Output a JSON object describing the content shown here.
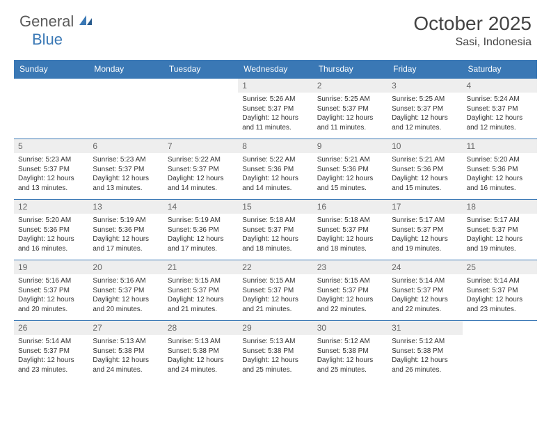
{
  "logo": {
    "text1": "General",
    "text2": "Blue"
  },
  "title": "October 2025",
  "location": "Sasi, Indonesia",
  "colors": {
    "header_bg": "#3a78b5",
    "header_text": "#ffffff",
    "daynum_bg": "#eeeeee",
    "daynum_text": "#666666",
    "border": "#3a78b5",
    "body_text": "#333333"
  },
  "dayHeaders": [
    "Sunday",
    "Monday",
    "Tuesday",
    "Wednesday",
    "Thursday",
    "Friday",
    "Saturday"
  ],
  "weeks": [
    [
      null,
      null,
      null,
      {
        "n": "1",
        "sr": "5:26 AM",
        "ss": "5:37 PM",
        "dl": "12 hours and 11 minutes."
      },
      {
        "n": "2",
        "sr": "5:25 AM",
        "ss": "5:37 PM",
        "dl": "12 hours and 11 minutes."
      },
      {
        "n": "3",
        "sr": "5:25 AM",
        "ss": "5:37 PM",
        "dl": "12 hours and 12 minutes."
      },
      {
        "n": "4",
        "sr": "5:24 AM",
        "ss": "5:37 PM",
        "dl": "12 hours and 12 minutes."
      }
    ],
    [
      {
        "n": "5",
        "sr": "5:23 AM",
        "ss": "5:37 PM",
        "dl": "12 hours and 13 minutes."
      },
      {
        "n": "6",
        "sr": "5:23 AM",
        "ss": "5:37 PM",
        "dl": "12 hours and 13 minutes."
      },
      {
        "n": "7",
        "sr": "5:22 AM",
        "ss": "5:37 PM",
        "dl": "12 hours and 14 minutes."
      },
      {
        "n": "8",
        "sr": "5:22 AM",
        "ss": "5:36 PM",
        "dl": "12 hours and 14 minutes."
      },
      {
        "n": "9",
        "sr": "5:21 AM",
        "ss": "5:36 PM",
        "dl": "12 hours and 15 minutes."
      },
      {
        "n": "10",
        "sr": "5:21 AM",
        "ss": "5:36 PM",
        "dl": "12 hours and 15 minutes."
      },
      {
        "n": "11",
        "sr": "5:20 AM",
        "ss": "5:36 PM",
        "dl": "12 hours and 16 minutes."
      }
    ],
    [
      {
        "n": "12",
        "sr": "5:20 AM",
        "ss": "5:36 PM",
        "dl": "12 hours and 16 minutes."
      },
      {
        "n": "13",
        "sr": "5:19 AM",
        "ss": "5:36 PM",
        "dl": "12 hours and 17 minutes."
      },
      {
        "n": "14",
        "sr": "5:19 AM",
        "ss": "5:36 PM",
        "dl": "12 hours and 17 minutes."
      },
      {
        "n": "15",
        "sr": "5:18 AM",
        "ss": "5:37 PM",
        "dl": "12 hours and 18 minutes."
      },
      {
        "n": "16",
        "sr": "5:18 AM",
        "ss": "5:37 PM",
        "dl": "12 hours and 18 minutes."
      },
      {
        "n": "17",
        "sr": "5:17 AM",
        "ss": "5:37 PM",
        "dl": "12 hours and 19 minutes."
      },
      {
        "n": "18",
        "sr": "5:17 AM",
        "ss": "5:37 PM",
        "dl": "12 hours and 19 minutes."
      }
    ],
    [
      {
        "n": "19",
        "sr": "5:16 AM",
        "ss": "5:37 PM",
        "dl": "12 hours and 20 minutes."
      },
      {
        "n": "20",
        "sr": "5:16 AM",
        "ss": "5:37 PM",
        "dl": "12 hours and 20 minutes."
      },
      {
        "n": "21",
        "sr": "5:15 AM",
        "ss": "5:37 PM",
        "dl": "12 hours and 21 minutes."
      },
      {
        "n": "22",
        "sr": "5:15 AM",
        "ss": "5:37 PM",
        "dl": "12 hours and 21 minutes."
      },
      {
        "n": "23",
        "sr": "5:15 AM",
        "ss": "5:37 PM",
        "dl": "12 hours and 22 minutes."
      },
      {
        "n": "24",
        "sr": "5:14 AM",
        "ss": "5:37 PM",
        "dl": "12 hours and 22 minutes."
      },
      {
        "n": "25",
        "sr": "5:14 AM",
        "ss": "5:37 PM",
        "dl": "12 hours and 23 minutes."
      }
    ],
    [
      {
        "n": "26",
        "sr": "5:14 AM",
        "ss": "5:37 PM",
        "dl": "12 hours and 23 minutes."
      },
      {
        "n": "27",
        "sr": "5:13 AM",
        "ss": "5:38 PM",
        "dl": "12 hours and 24 minutes."
      },
      {
        "n": "28",
        "sr": "5:13 AM",
        "ss": "5:38 PM",
        "dl": "12 hours and 24 minutes."
      },
      {
        "n": "29",
        "sr": "5:13 AM",
        "ss": "5:38 PM",
        "dl": "12 hours and 25 minutes."
      },
      {
        "n": "30",
        "sr": "5:12 AM",
        "ss": "5:38 PM",
        "dl": "12 hours and 25 minutes."
      },
      {
        "n": "31",
        "sr": "5:12 AM",
        "ss": "5:38 PM",
        "dl": "12 hours and 26 minutes."
      },
      null
    ]
  ],
  "labels": {
    "sunrise": "Sunrise:",
    "sunset": "Sunset:",
    "daylight": "Daylight:"
  }
}
